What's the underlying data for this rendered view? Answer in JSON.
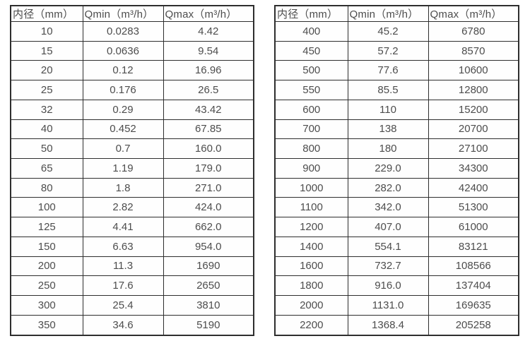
{
  "page": {
    "background": "#ffffff",
    "text_color": "#4d4d4d",
    "border_color": "#2e2e2e"
  },
  "tables": [
    {
      "name": "small-diameter-flow-table",
      "headers": [
        "内径（mm）",
        "Qmin（m³/h）",
        "Qmax（m³/h）"
      ],
      "rows": [
        [
          "10",
          "0.0283",
          "4.42"
        ],
        [
          "15",
          "0.0636",
          "9.54"
        ],
        [
          "20",
          "0.12",
          "16.96"
        ],
        [
          "25",
          "0.176",
          "26.5"
        ],
        [
          "32",
          "0.29",
          "43.42"
        ],
        [
          "40",
          "0.452",
          "67.85"
        ],
        [
          "50",
          "0.7",
          "160.0"
        ],
        [
          "65",
          "1.19",
          "179.0"
        ],
        [
          "80",
          "1.8",
          "271.0"
        ],
        [
          "100",
          "2.82",
          "424.0"
        ],
        [
          "125",
          "4.41",
          "662.0"
        ],
        [
          "150",
          "6.63",
          "954.0"
        ],
        [
          "200",
          "11.3",
          "1690"
        ],
        [
          "250",
          "17.6",
          "2650"
        ],
        [
          "300",
          "25.4",
          "3810"
        ],
        [
          "350",
          "34.6",
          "5190"
        ]
      ]
    },
    {
      "name": "large-diameter-flow-table",
      "headers": [
        "内径（mm）",
        "Qmin（m³/h）",
        "Qmax（m³/h）"
      ],
      "rows": [
        [
          "400",
          "45.2",
          "6780"
        ],
        [
          "450",
          "57.2",
          "8570"
        ],
        [
          "500",
          "77.6",
          "10600"
        ],
        [
          "550",
          "85.5",
          "12800"
        ],
        [
          "600",
          "110",
          "15200"
        ],
        [
          "700",
          "138",
          "20700"
        ],
        [
          "800",
          "180",
          "27100"
        ],
        [
          "900",
          "229.0",
          "34300"
        ],
        [
          "1000",
          "282.0",
          "42400"
        ],
        [
          "1100",
          "342.0",
          "51300"
        ],
        [
          "1200",
          "407.0",
          "61000"
        ],
        [
          "1400",
          "554.1",
          "83121"
        ],
        [
          "1600",
          "732.7",
          "108566"
        ],
        [
          "1800",
          "916.0",
          "137404"
        ],
        [
          "2000",
          "1131.0",
          "169635"
        ],
        [
          "2200",
          "1368.4",
          "205258"
        ]
      ]
    }
  ]
}
